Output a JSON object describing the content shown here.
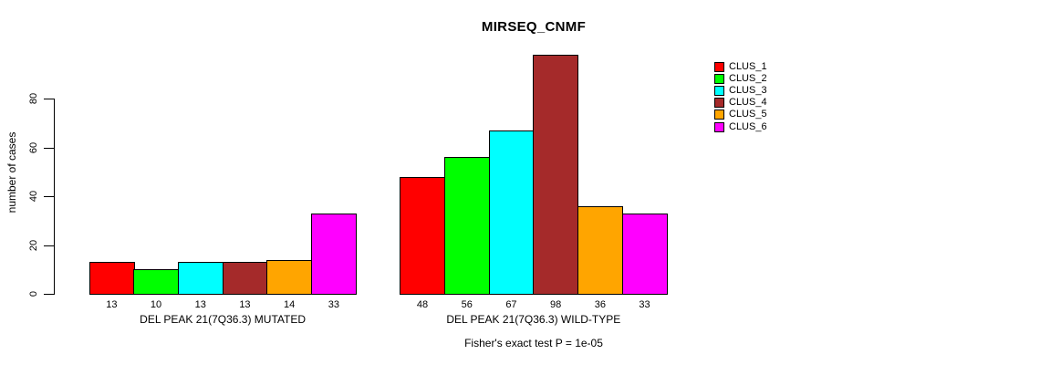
{
  "title": "MIRSEQ_CNMF",
  "chart_data": {
    "type": "bar",
    "title": "MIRSEQ_CNMF",
    "ylabel": "number of cases",
    "xlabel": "",
    "ylim": [
      0,
      100
    ],
    "yticks": [
      0,
      20,
      40,
      60,
      80
    ],
    "grid": false,
    "legend_position": "top-right",
    "legend": [
      {
        "label": "CLUS_1",
        "color": "#FF0000"
      },
      {
        "label": "CLUS_2",
        "color": "#00FF00"
      },
      {
        "label": "CLUS_3",
        "color": "#00FFFF"
      },
      {
        "label": "CLUS_4",
        "color": "#A52A2A"
      },
      {
        "label": "CLUS_5",
        "color": "#FFA500"
      },
      {
        "label": "CLUS_6",
        "color": "#FF00FF"
      }
    ],
    "groups": [
      {
        "label": "DEL PEAK 21(7Q36.3) MUTATED",
        "values": [
          13,
          10,
          13,
          13,
          14,
          33
        ]
      },
      {
        "label": "DEL PEAK 21(7Q36.3) WILD-TYPE",
        "values": [
          48,
          56,
          67,
          98,
          36,
          33
        ]
      }
    ],
    "bar_value_labels_shown": true,
    "annotation": "Fisher's exact test P = 1e-05"
  }
}
